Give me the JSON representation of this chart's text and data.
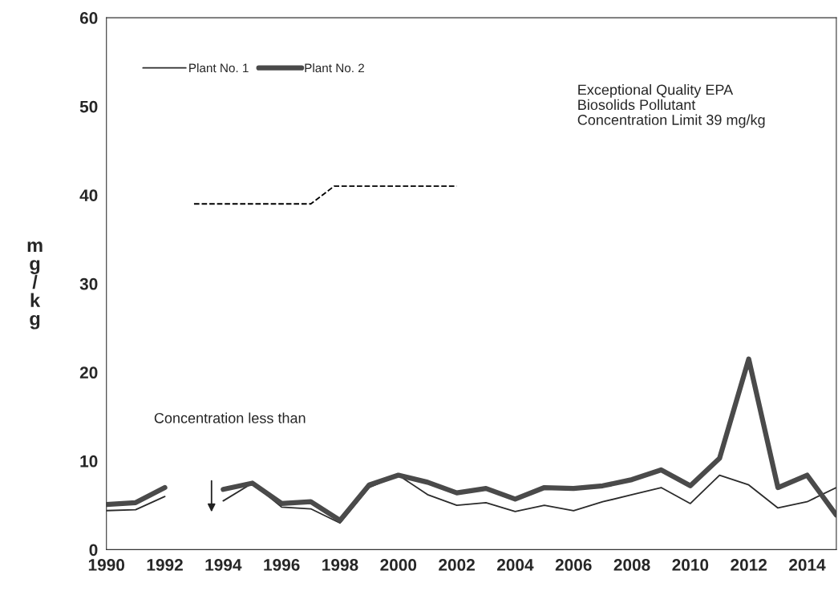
{
  "chart_data": {
    "type": "line",
    "ylabel": "mg/kg",
    "x": [
      1990,
      1991,
      1992,
      1993,
      1994,
      1995,
      1996,
      1997,
      1998,
      1999,
      2000,
      2001,
      2002,
      2003,
      2004,
      2005,
      2006,
      2007,
      2008,
      2009,
      2010,
      2011,
      2012,
      2013,
      2014,
      2015
    ],
    "series": [
      {
        "name": "Plant No. 1",
        "color": "#2b2b2b",
        "values": [
          4.4,
          4.5,
          6.0,
          null,
          5.5,
          7.5,
          4.8,
          4.6,
          3.0,
          7.0,
          8.4,
          6.2,
          5.0,
          5.3,
          4.3,
          5.0,
          4.4,
          5.4,
          6.2,
          7.0,
          5.2,
          8.4,
          7.3,
          4.7,
          5.4,
          7.0
        ]
      },
      {
        "name": "Plant No. 2",
        "color": "#4a4a4a",
        "values": [
          5.1,
          5.3,
          7.0,
          null,
          6.8,
          7.5,
          5.2,
          5.4,
          3.3,
          7.3,
          8.4,
          7.6,
          6.4,
          6.9,
          5.7,
          7.0,
          6.9,
          7.2,
          7.9,
          9.0,
          7.2,
          10.3,
          21.5,
          7.0,
          8.4,
          3.9
        ]
      },
      {
        "color": "#000000",
        "line_style": "dashed",
        "x": [
          1993,
          1997,
          1997.8,
          2002
        ],
        "values": [
          39,
          39,
          41,
          41
        ]
      }
    ],
    "xlim": [
      1990,
      2015
    ],
    "ylim": [
      0,
      60
    ],
    "xticks": [
      1990,
      1992,
      1994,
      1996,
      1998,
      2000,
      2002,
      2004,
      2006,
      2008,
      2010,
      2012,
      2014
    ],
    "yticks": [
      0,
      10,
      20,
      30,
      40,
      50,
      60
    ],
    "grid": false,
    "legend": "top left",
    "marker": "none",
    "line_style": "solid",
    "annotations": [
      "Exceptional Quality EPA\nBiosolids Pollutant\nConcentration Limit 39 mg/kg",
      "Concentration less than"
    ]
  }
}
